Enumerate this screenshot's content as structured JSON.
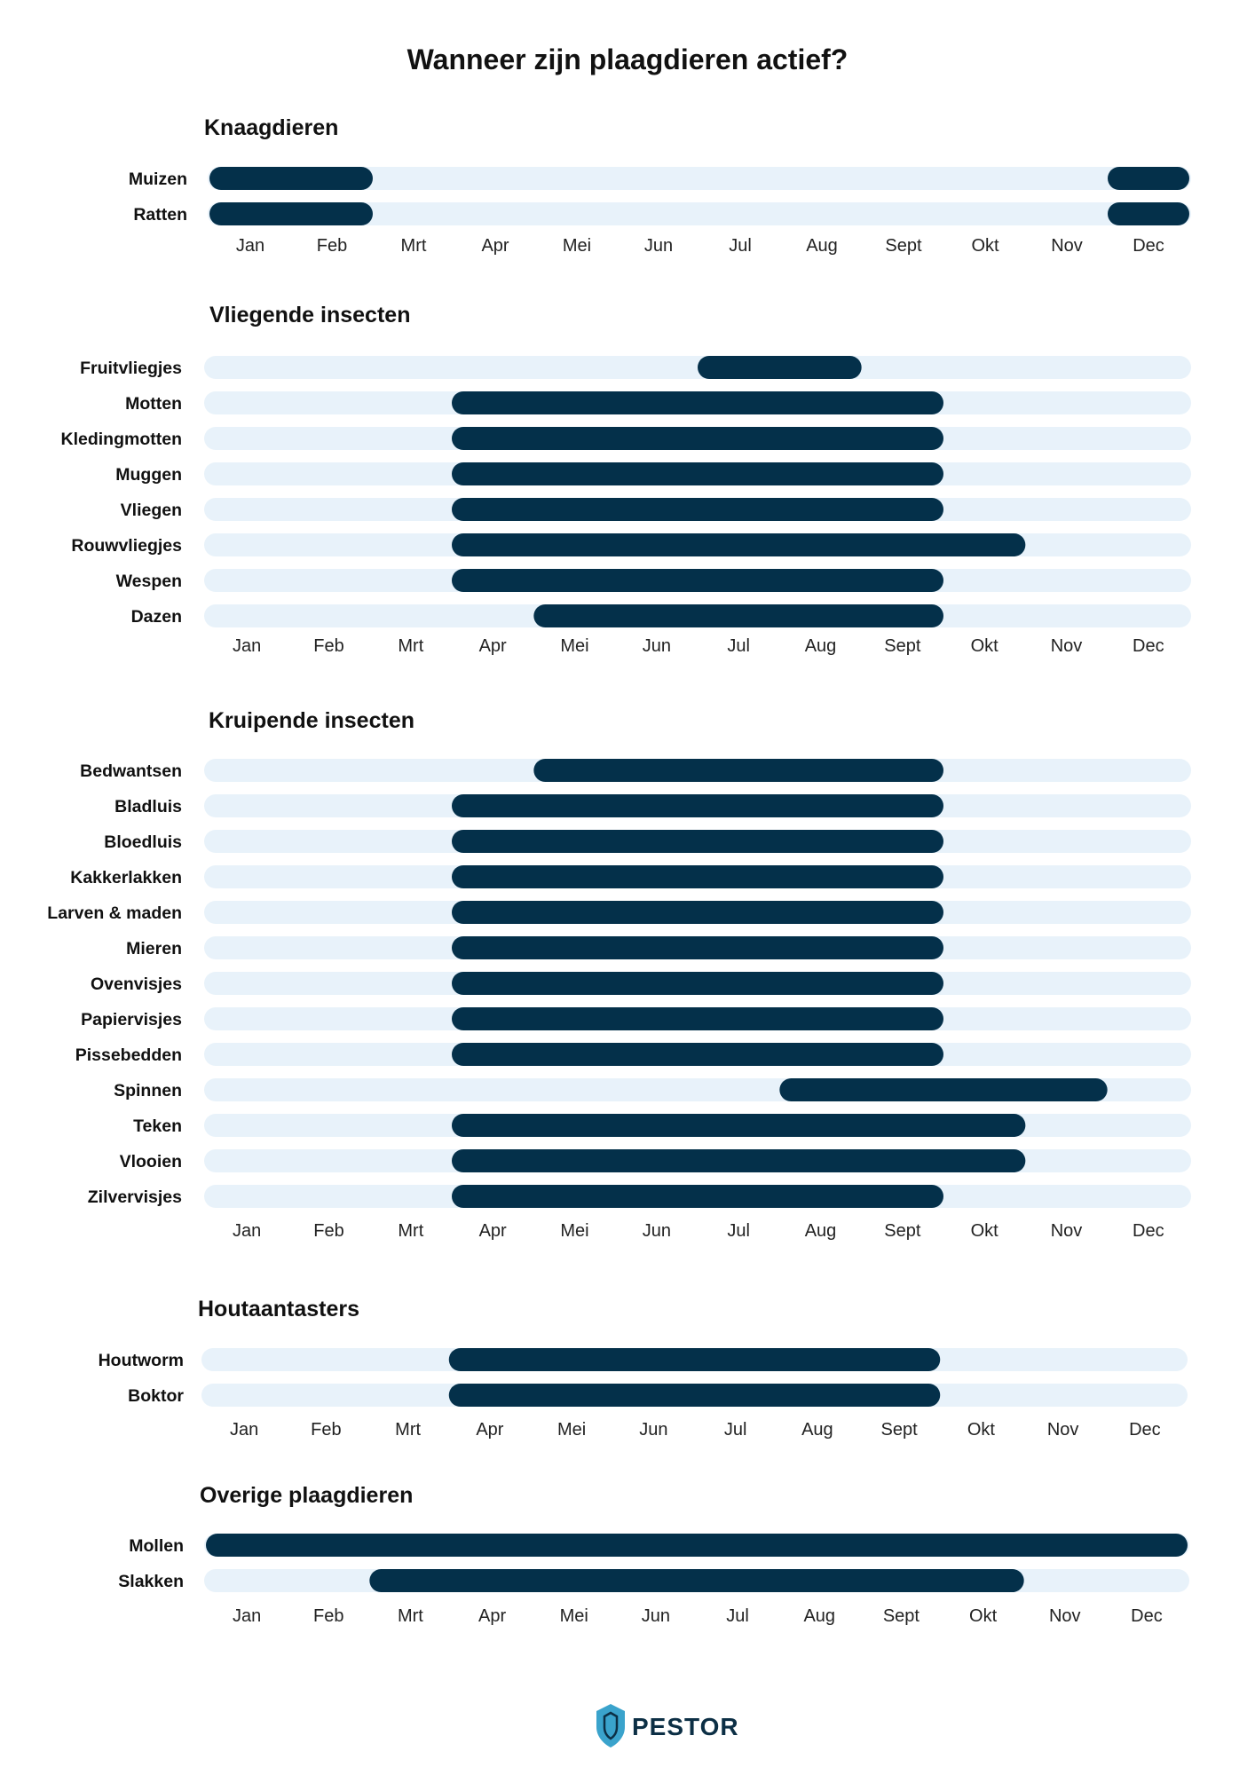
{
  "title": "Wanneer zijn plaagdieren actief?",
  "brand": "PESTOR",
  "colors": {
    "active": "#04304a",
    "track": "#e8f2fa",
    "text": "#111111",
    "logo_shield": "#3aa3cc"
  },
  "months": [
    "Jan",
    "Feb",
    "Mrt",
    "Apr",
    "Mei",
    "Jun",
    "Jul",
    "Aug",
    "Sept",
    "Okt",
    "Nov",
    "Dec"
  ],
  "chart_data": {
    "type": "bar",
    "title": "Wanneer zijn plaagdieren actief?",
    "x_unit": "months (0 = start of Jan, 12 = end of Dec)",
    "xlim": [
      0,
      12
    ],
    "groups": [
      {
        "name": "Knaagdieren",
        "rows": [
          {
            "label": "Muizen",
            "periods": [
              [
                0,
                2
              ],
              [
                11,
                12
              ]
            ]
          },
          {
            "label": "Ratten",
            "periods": [
              [
                0,
                2
              ],
              [
                11,
                12
              ]
            ]
          }
        ]
      },
      {
        "name": "Vliegende insecten",
        "rows": [
          {
            "label": "Fruitvliegjes",
            "periods": [
              [
                6,
                8
              ]
            ]
          },
          {
            "label": "Motten",
            "periods": [
              [
                3,
                9
              ]
            ]
          },
          {
            "label": "Kledingmotten",
            "periods": [
              [
                3,
                9
              ]
            ]
          },
          {
            "label": "Muggen",
            "periods": [
              [
                3,
                9
              ]
            ]
          },
          {
            "label": "Vliegen",
            "periods": [
              [
                3,
                9
              ]
            ]
          },
          {
            "label": "Rouwvliegjes",
            "periods": [
              [
                3,
                10
              ]
            ]
          },
          {
            "label": "Wespen",
            "periods": [
              [
                3,
                9
              ]
            ]
          },
          {
            "label": "Dazen",
            "periods": [
              [
                4,
                9
              ]
            ]
          }
        ]
      },
      {
        "name": "Kruipende insecten",
        "rows": [
          {
            "label": "Bedwantsen",
            "periods": [
              [
                4,
                9
              ]
            ]
          },
          {
            "label": "Bladluis",
            "periods": [
              [
                3,
                9
              ]
            ]
          },
          {
            "label": "Bloedluis",
            "periods": [
              [
                3,
                9
              ]
            ]
          },
          {
            "label": "Kakkerlakken",
            "periods": [
              [
                3,
                9
              ]
            ]
          },
          {
            "label": "Larven & maden",
            "periods": [
              [
                3,
                9
              ]
            ]
          },
          {
            "label": "Mieren",
            "periods": [
              [
                3,
                9
              ]
            ]
          },
          {
            "label": "Ovenvisjes",
            "periods": [
              [
                3,
                9
              ]
            ]
          },
          {
            "label": "Papiervisjes",
            "periods": [
              [
                3,
                9
              ]
            ]
          },
          {
            "label": "Pissebedden",
            "periods": [
              [
                3,
                9
              ]
            ]
          },
          {
            "label": "Spinnen",
            "periods": [
              [
                7,
                11
              ]
            ]
          },
          {
            "label": "Teken",
            "periods": [
              [
                3,
                10
              ]
            ]
          },
          {
            "label": "Vlooien",
            "periods": [
              [
                3,
                10
              ]
            ]
          },
          {
            "label": "Zilvervisjes",
            "periods": [
              [
                3,
                9
              ]
            ]
          }
        ]
      },
      {
        "name": "Houtaantasters",
        "rows": [
          {
            "label": "Houtworm",
            "periods": [
              [
                3,
                9
              ]
            ]
          },
          {
            "label": "Boktor",
            "periods": [
              [
                3,
                9
              ]
            ]
          }
        ]
      },
      {
        "name": "Overige plaagdieren",
        "rows": [
          {
            "label": "Mollen",
            "periods": [
              [
                0,
                12
              ]
            ]
          },
          {
            "label": "Slakken",
            "periods": [
              [
                2,
                10
              ]
            ]
          }
        ]
      }
    ]
  }
}
